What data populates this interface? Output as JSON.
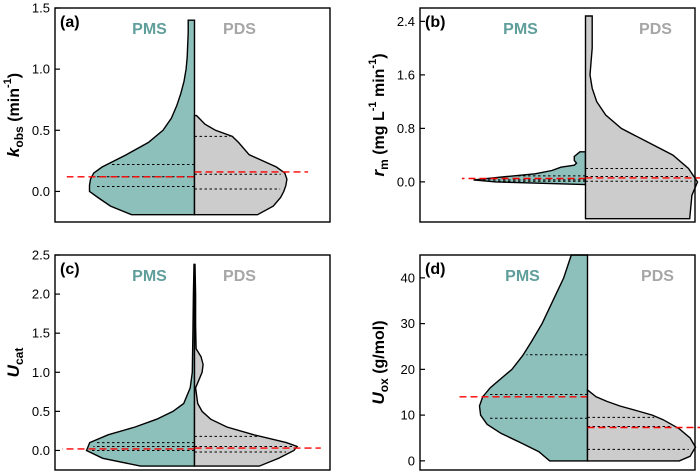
{
  "chart_data": [
    {
      "type": "violin",
      "panel_label": "(a)",
      "ylabel": "k_obs (min^-1)",
      "ylim": [
        -0.25,
        1.5
      ],
      "yticks": [
        0.0,
        0.5,
        1.0,
        1.5
      ],
      "yticklabels": [
        "0.0",
        "0.5",
        "1.0",
        "1.5"
      ],
      "series": [
        {
          "name": "PMS",
          "side": "left",
          "color": "#8dbfbb",
          "min": -0.19,
          "max": 1.4,
          "q1": 0.04,
          "median": 0.12,
          "q3": 0.22,
          "mean": 0.12,
          "profile": [
            [
              -0.19,
              0.6
            ],
            [
              -0.12,
              0.8
            ],
            [
              -0.05,
              0.92
            ],
            [
              0.0,
              1.0
            ],
            [
              0.05,
              1.0
            ],
            [
              0.1,
              0.99
            ],
            [
              0.15,
              0.96
            ],
            [
              0.2,
              0.88
            ],
            [
              0.3,
              0.65
            ],
            [
              0.4,
              0.44
            ],
            [
              0.5,
              0.3
            ],
            [
              0.6,
              0.22
            ],
            [
              0.7,
              0.17
            ],
            [
              0.8,
              0.13
            ],
            [
              0.9,
              0.1
            ],
            [
              1.0,
              0.08
            ],
            [
              1.1,
              0.07
            ],
            [
              1.2,
              0.065
            ],
            [
              1.3,
              0.06
            ],
            [
              1.4,
              0.06
            ]
          ]
        },
        {
          "name": "PDS",
          "side": "right",
          "color": "#cccccc",
          "min": -0.19,
          "max": 0.62,
          "q1": 0.02,
          "median": 0.14,
          "q3": 0.45,
          "mean": 0.16,
          "profile": [
            [
              -0.19,
              0.6
            ],
            [
              -0.12,
              0.75
            ],
            [
              -0.05,
              0.82
            ],
            [
              0.0,
              0.85
            ],
            [
              0.05,
              0.87
            ],
            [
              0.1,
              0.88
            ],
            [
              0.15,
              0.86
            ],
            [
              0.2,
              0.78
            ],
            [
              0.3,
              0.52
            ],
            [
              0.4,
              0.42
            ],
            [
              0.45,
              0.36
            ],
            [
              0.5,
              0.2
            ],
            [
              0.55,
              0.1
            ],
            [
              0.62,
              0.02
            ]
          ]
        }
      ]
    },
    {
      "type": "violin",
      "panel_label": "(b)",
      "ylabel": "r_m (mg L^-1 min^-1)",
      "ylim": [
        -0.6,
        2.6
      ],
      "yticks": [
        0.0,
        0.8,
        1.6,
        2.4
      ],
      "yticklabels": [
        "0.0",
        "0.8",
        "1.6",
        "2.4"
      ],
      "series": [
        {
          "name": "PMS",
          "side": "left",
          "color": "#8dbfbb",
          "min": -0.04,
          "max": 0.45,
          "q1": 0.01,
          "median": 0.03,
          "q3": 0.09,
          "mean": 0.05,
          "profile": [
            [
              -0.04,
              0.0
            ],
            [
              0.0,
              0.8
            ],
            [
              0.03,
              1.0
            ],
            [
              0.08,
              0.7
            ],
            [
              0.12,
              0.45
            ],
            [
              0.17,
              0.3
            ],
            [
              0.22,
              0.22
            ],
            [
              0.25,
              0.1
            ],
            [
              0.28,
              0.08
            ],
            [
              0.32,
              0.1
            ],
            [
              0.38,
              0.1
            ],
            [
              0.45,
              0.05
            ]
          ]
        },
        {
          "name": "PDS",
          "side": "right",
          "color": "#cccccc",
          "min": -0.55,
          "max": 2.48,
          "q1": 0.01,
          "median": 0.08,
          "q3": 0.2,
          "mean": 0.06,
          "profile": [
            [
              -0.55,
              0.93
            ],
            [
              -0.2,
              0.95
            ],
            [
              0.0,
              1.0
            ],
            [
              0.2,
              0.92
            ],
            [
              0.4,
              0.78
            ],
            [
              0.6,
              0.55
            ],
            [
              0.8,
              0.32
            ],
            [
              1.0,
              0.18
            ],
            [
              1.2,
              0.1
            ],
            [
              1.4,
              0.06
            ],
            [
              1.6,
              0.04
            ],
            [
              1.8,
              0.05
            ],
            [
              2.0,
              0.06
            ],
            [
              2.2,
              0.06
            ],
            [
              2.48,
              0.06
            ]
          ]
        }
      ]
    },
    {
      "type": "violin",
      "panel_label": "(c)",
      "ylabel": "U_cat",
      "ylim": [
        -0.25,
        2.5
      ],
      "yticks": [
        0.0,
        0.5,
        1.0,
        1.5,
        2.0,
        2.5
      ],
      "yticklabels": [
        "0.0",
        "0.5",
        "1.0",
        "1.5",
        "2.0",
        "2.5"
      ],
      "series": [
        {
          "name": "PMS",
          "side": "left",
          "color": "#8dbfbb",
          "min": -0.2,
          "max": 2.38,
          "q1": 0.0,
          "median": 0.05,
          "q3": 0.1,
          "mean": 0.02,
          "profile": [
            [
              -0.2,
              0.5
            ],
            [
              -0.1,
              0.85
            ],
            [
              0.0,
              1.0
            ],
            [
              0.1,
              0.97
            ],
            [
              0.2,
              0.8
            ],
            [
              0.3,
              0.55
            ],
            [
              0.4,
              0.35
            ],
            [
              0.5,
              0.2
            ],
            [
              0.6,
              0.1
            ],
            [
              0.8,
              0.04
            ],
            [
              1.0,
              0.02
            ],
            [
              1.5,
              0.015
            ],
            [
              2.0,
              0.01
            ],
            [
              2.38,
              0.005
            ]
          ]
        },
        {
          "name": "PDS",
          "side": "right",
          "color": "#cccccc",
          "min": -0.2,
          "max": 2.38,
          "q1": -0.02,
          "median": 0.05,
          "q3": 0.18,
          "mean": 0.03,
          "profile": [
            [
              -0.2,
              0.6
            ],
            [
              -0.1,
              0.78
            ],
            [
              0.0,
              0.92
            ],
            [
              0.05,
              0.95
            ],
            [
              0.1,
              0.85
            ],
            [
              0.2,
              0.55
            ],
            [
              0.3,
              0.3
            ],
            [
              0.4,
              0.15
            ],
            [
              0.5,
              0.07
            ],
            [
              0.6,
              0.03
            ],
            [
              0.8,
              0.01
            ],
            [
              1.0,
              0.07
            ],
            [
              1.1,
              0.08
            ],
            [
              1.2,
              0.06
            ],
            [
              1.3,
              0.015
            ],
            [
              1.6,
              0.01
            ],
            [
              2.0,
              0.01
            ],
            [
              2.38,
              0.005
            ]
          ]
        }
      ]
    },
    {
      "type": "violin",
      "panel_label": "(d)",
      "ylabel": "U_ox (g/mol)",
      "ylim": [
        -2,
        45
      ],
      "yticks": [
        0,
        10,
        20,
        30,
        40
      ],
      "yticklabels": [
        "0",
        "10",
        "20",
        "30",
        "40"
      ],
      "series": [
        {
          "name": "PMS",
          "side": "left",
          "color": "#8dbfbb",
          "min": 0,
          "max": 45,
          "q1": 9.3,
          "median": 14.5,
          "q3": 23.2,
          "mean": 14.0,
          "profile": [
            [
              0,
              0.35
            ],
            [
              2,
              0.45
            ],
            [
              4,
              0.62
            ],
            [
              6,
              0.8
            ],
            [
              8,
              0.93
            ],
            [
              10,
              0.99
            ],
            [
              12,
              1.0
            ],
            [
              14,
              0.97
            ],
            [
              16,
              0.9
            ],
            [
              18,
              0.8
            ],
            [
              20,
              0.7
            ],
            [
              23,
              0.6
            ],
            [
              26,
              0.52
            ],
            [
              30,
              0.42
            ],
            [
              35,
              0.32
            ],
            [
              40,
              0.22
            ],
            [
              45,
              0.15
            ]
          ]
        },
        {
          "name": "PDS",
          "side": "right",
          "color": "#cccccc",
          "min": 0,
          "max": 15.5,
          "q1": 2.5,
          "median": 7.5,
          "q3": 9.5,
          "mean": 7.3,
          "profile": [
            [
              0,
              0.85
            ],
            [
              1,
              0.95
            ],
            [
              3,
              1.0
            ],
            [
              5,
              0.95
            ],
            [
              7,
              0.85
            ],
            [
              9,
              0.7
            ],
            [
              10,
              0.6
            ],
            [
              11,
              0.45
            ],
            [
              12,
              0.3
            ],
            [
              13,
              0.18
            ],
            [
              14,
              0.08
            ],
            [
              15.5,
              0.0
            ]
          ]
        }
      ]
    }
  ],
  "colors": {
    "pms_fill": "#8dbfbb",
    "pms_text": "#5f9e9a",
    "pds_fill": "#cccccc",
    "pds_text": "#a6a6a6",
    "mean_line": "#ff0000"
  }
}
